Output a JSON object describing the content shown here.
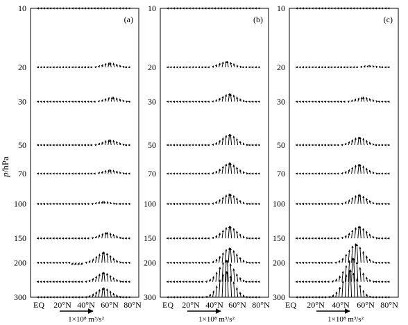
{
  "figure": {
    "ylabel_italic": "p",
    "ylabel_rest": "/hPa",
    "xticks": [
      "EQ",
      "20°N",
      "40°N",
      "60°N",
      "80°N"
    ],
    "scale_label": "1×10⁸ m³/s²"
  },
  "colors": {
    "ink": "#000000",
    "background": "#ffffff"
  },
  "chart_data": [
    {
      "type": "vector field (EP flux)",
      "panel_label": "(a)",
      "x_range": [
        0,
        90
      ],
      "pressure_levels": [
        10,
        20,
        30,
        50,
        70,
        100,
        150,
        200,
        250,
        300
      ],
      "y_scale": "log",
      "y_axis_ticks": [
        "10",
        "20",
        "30",
        "50",
        "70",
        "100",
        "150",
        "200",
        "300"
      ],
      "vector_scale": "1×10⁸ m³/s²",
      "upward_peak_by_level": [
        {
          "p": 10,
          "lat": 60,
          "amp": 1
        },
        {
          "p": 20,
          "lat": 68,
          "amp": 7
        },
        {
          "p": 30,
          "lat": 70,
          "amp": 7
        },
        {
          "p": 50,
          "lat": 68,
          "amp": 8
        },
        {
          "p": 70,
          "lat": 68,
          "amp": 6
        },
        {
          "p": 100,
          "lat": 62,
          "amp": 4
        },
        {
          "p": 150,
          "lat": 65,
          "amp": 9
        },
        {
          "p": 200,
          "lat": 62,
          "amp": 16
        },
        {
          "p": 250,
          "lat": 62,
          "amp": 14
        },
        {
          "p": 300,
          "lat": 62,
          "amp": 14
        }
      ]
    },
    {
      "type": "vector field (EP flux)",
      "panel_label": "(b)",
      "x_range": [
        0,
        90
      ],
      "pressure_levels": [
        10,
        20,
        30,
        50,
        70,
        100,
        150,
        200,
        250,
        300
      ],
      "y_scale": "log",
      "y_axis_ticks": [
        "10",
        "20",
        "30",
        "50",
        "70",
        "100",
        "150",
        "200",
        "300"
      ],
      "vector_scale": "1×10⁸ m³/s²",
      "upward_peak_by_level": [
        {
          "p": 10,
          "lat": 40,
          "amp": 1
        },
        {
          "p": 20,
          "lat": 55,
          "amp": 9
        },
        {
          "p": 30,
          "lat": 58,
          "amp": 12
        },
        {
          "p": 50,
          "lat": 58,
          "amp": 16
        },
        {
          "p": 70,
          "lat": 58,
          "amp": 16
        },
        {
          "p": 100,
          "lat": 58,
          "amp": 15
        },
        {
          "p": 150,
          "lat": 58,
          "amp": 18
        },
        {
          "p": 200,
          "lat": 58,
          "amp": 22
        },
        {
          "p": 250,
          "lat": 55,
          "amp": 32
        },
        {
          "p": 300,
          "lat": 55,
          "amp": 38
        }
      ]
    },
    {
      "type": "vector field (EP flux)",
      "panel_label": "(c)",
      "x_range": [
        0,
        90
      ],
      "pressure_levels": [
        10,
        20,
        30,
        50,
        70,
        100,
        150,
        200,
        250,
        300
      ],
      "y_scale": "log",
      "y_axis_ticks": [
        "10",
        "20",
        "30",
        "50",
        "70",
        "100",
        "150",
        "200",
        "300"
      ],
      "vector_scale": "1×10⁸ m³/s²",
      "upward_peak_by_level": [
        {
          "p": 10,
          "lat": 75,
          "amp": 1
        },
        {
          "p": 20,
          "lat": 68,
          "amp": 3
        },
        {
          "p": 30,
          "lat": 62,
          "amp": 7
        },
        {
          "p": 50,
          "lat": 58,
          "amp": 12
        },
        {
          "p": 70,
          "lat": 58,
          "amp": 14
        },
        {
          "p": 100,
          "lat": 58,
          "amp": 14
        },
        {
          "p": 150,
          "lat": 58,
          "amp": 18
        },
        {
          "p": 200,
          "lat": 55,
          "amp": 28
        },
        {
          "p": 250,
          "lat": 52,
          "amp": 35
        },
        {
          "p": 300,
          "lat": 50,
          "amp": 40
        }
      ]
    }
  ]
}
